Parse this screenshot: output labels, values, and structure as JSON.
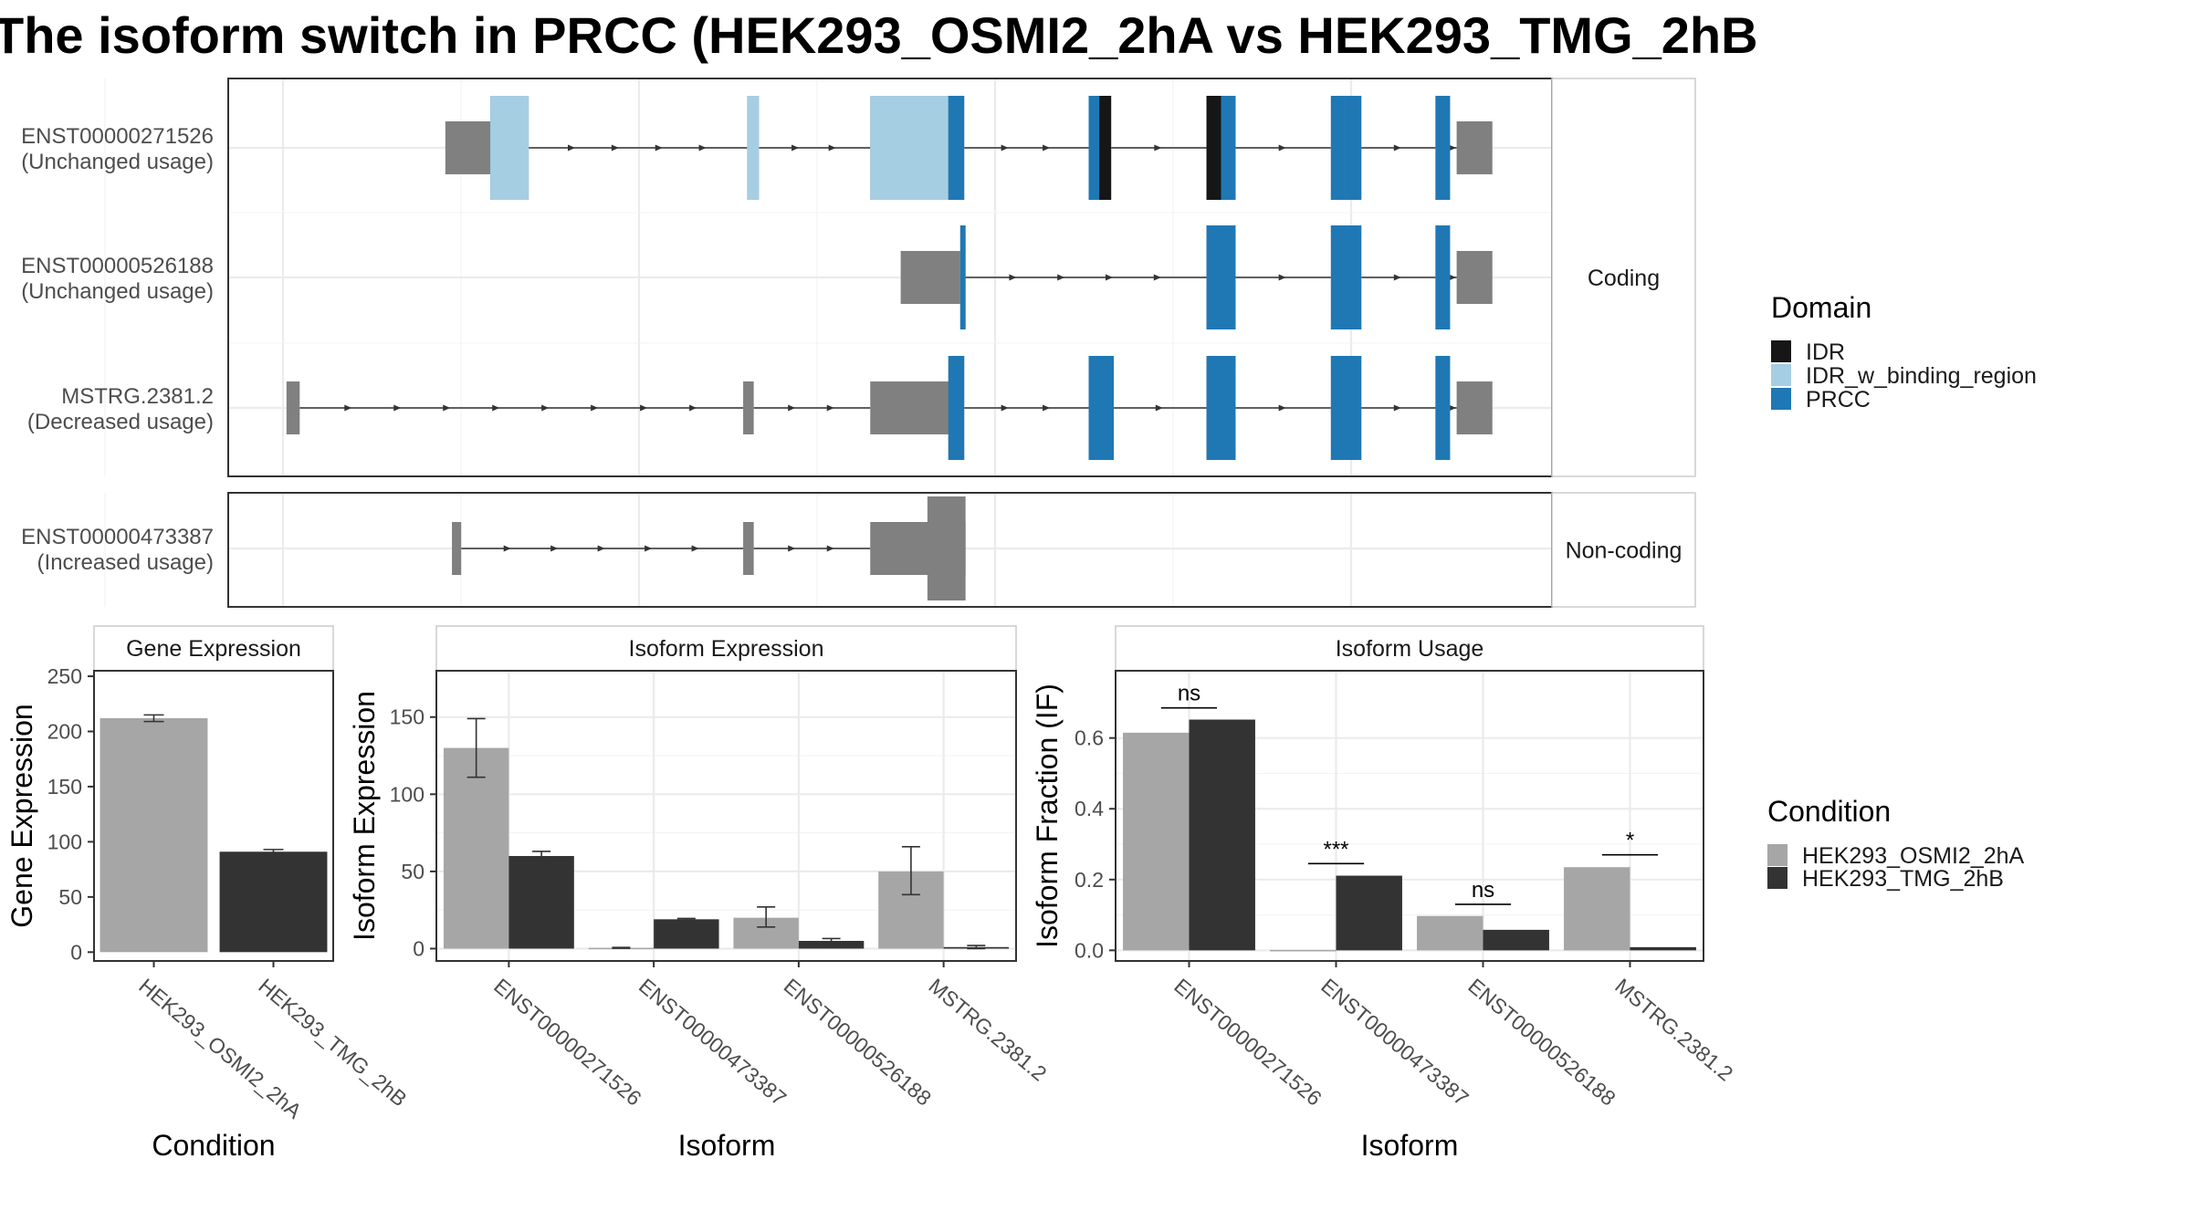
{
  "title": "The isoform switch in PRCC (HEK293_OSMI2_2hA vs HEK293_TMG_2hB",
  "colors": {
    "utr": "#808080",
    "idr": "#161616",
    "idr_w_binding_region": "#a6cee3",
    "prcc": "#1f78b4",
    "cond_a": "#a6a6a6",
    "cond_b": "#333333",
    "panel_border": "#333333",
    "grid": "#ebebeb",
    "strip_border": "#cccccc",
    "text": "#4d4d4d"
  },
  "structure": {
    "genomic_range": [
      0,
      1000
    ],
    "facets": [
      {
        "label": "Coding",
        "tracks": [
          0,
          1,
          2
        ]
      },
      {
        "label": "Non-coding",
        "tracks": [
          3
        ]
      }
    ],
    "tracks": [
      {
        "id": "ENST00000271526",
        "usage": "(Unchanged usage)",
        "coding": true,
        "utr": [
          [
            164,
            198
          ],
          [
            928,
            955
          ]
        ],
        "exons": [
          [
            198,
            227
          ],
          [
            392,
            401
          ],
          [
            485,
            556
          ],
          [
            650,
            667
          ],
          [
            739,
            761
          ],
          [
            833,
            856
          ],
          [
            912,
            923
          ]
        ],
        "domains": [
          {
            "domain": "IDR_w_binding_region",
            "start": 198,
            "end": 227
          },
          {
            "domain": "IDR_w_binding_region",
            "start": 392,
            "end": 401
          },
          {
            "domain": "IDR_w_binding_region",
            "start": 485,
            "end": 544
          },
          {
            "domain": "PRCC",
            "start": 544,
            "end": 556
          },
          {
            "domain": "PRCC",
            "start": 650,
            "end": 658
          },
          {
            "domain": "IDR",
            "start": 658,
            "end": 667
          },
          {
            "domain": "IDR",
            "start": 739,
            "end": 750
          },
          {
            "domain": "PRCC",
            "start": 750,
            "end": 761
          },
          {
            "domain": "PRCC",
            "start": 833,
            "end": 844
          },
          {
            "domain": "PRCC",
            "start": 844,
            "end": 856
          },
          {
            "domain": "PRCC",
            "start": 912,
            "end": 923
          }
        ]
      },
      {
        "id": "ENST00000526188",
        "usage": "(Unchanged usage)",
        "coding": true,
        "utr": [
          [
            508,
            553
          ],
          [
            928,
            955
          ]
        ],
        "exons": [
          [
            553,
            557
          ],
          [
            739,
            761
          ],
          [
            833,
            856
          ],
          [
            912,
            923
          ]
        ],
        "domains": [
          {
            "domain": "PRCC",
            "start": 553,
            "end": 557
          },
          {
            "domain": "PRCC",
            "start": 739,
            "end": 761
          },
          {
            "domain": "PRCC",
            "start": 833,
            "end": 856
          },
          {
            "domain": "PRCC",
            "start": 912,
            "end": 923
          }
        ]
      },
      {
        "id": "MSTRG.2381.2",
        "usage": "(Decreased usage)",
        "coding": true,
        "utr": [
          [
            44,
            54
          ],
          [
            389,
            397
          ],
          [
            485,
            554
          ],
          [
            928,
            955
          ]
        ],
        "exons": [
          [
            544,
            556
          ],
          [
            650,
            669
          ],
          [
            739,
            761
          ],
          [
            833,
            856
          ],
          [
            912,
            923
          ]
        ],
        "domains": [
          {
            "domain": "PRCC",
            "start": 544,
            "end": 556
          },
          {
            "domain": "PRCC",
            "start": 650,
            "end": 669
          },
          {
            "domain": "PRCC",
            "start": 739,
            "end": 761
          },
          {
            "domain": "PRCC",
            "start": 833,
            "end": 856
          },
          {
            "domain": "PRCC",
            "start": 912,
            "end": 923
          }
        ]
      },
      {
        "id": "ENST00000473387",
        "usage": "(Increased usage)",
        "coding": false,
        "noncoding_exons": [
          [
            169,
            176
          ],
          [
            389,
            397
          ],
          [
            485,
            557
          ]
        ]
      }
    ]
  },
  "legend_domain": {
    "title": "Domain",
    "entries": [
      {
        "label": "IDR",
        "color": "#161616"
      },
      {
        "label": "IDR_w_binding_region",
        "color": "#a6cee3"
      },
      {
        "label": "PRCC",
        "color": "#1f78b4"
      }
    ]
  },
  "legend_condition": {
    "title": "Condition",
    "entries": [
      {
        "label": "HEK293_OSMI2_2hA",
        "color": "#a6a6a6"
      },
      {
        "label": "HEK293_TMG_2hB",
        "color": "#333333"
      }
    ]
  },
  "chart_data": [
    {
      "type": "bar",
      "title": "Gene Expression",
      "xlabel": "Condition",
      "ylabel": "Gene Expression",
      "categories": [
        "HEK293_OSMI2_2hA",
        "HEK293_TMG_2hB"
      ],
      "values": [
        212,
        91
      ],
      "errors": [
        [
          209,
          215
        ],
        [
          89,
          93
        ]
      ],
      "ylim": [
        -8,
        255
      ],
      "yticks": [
        0,
        50,
        100,
        150,
        200,
        250
      ]
    },
    {
      "type": "bar",
      "title": "Isoform Expression",
      "xlabel": "Isoform",
      "ylabel": "Isoform Expression",
      "categories": [
        "ENST00000271526",
        "ENST00000473387",
        "ENST00000526188",
        "MSTRG.2381.2"
      ],
      "series": [
        {
          "name": "HEK293_OSMI2_2hA",
          "values": [
            130,
            0.5,
            20,
            50
          ],
          "errors": [
            [
              111,
              149
            ],
            [
              0.2,
              0.8
            ],
            [
              14,
              27
            ],
            [
              35,
              66
            ]
          ]
        },
        {
          "name": "HEK293_TMG_2hB",
          "values": [
            60,
            19,
            5,
            1
          ],
          "errors": [
            [
              57,
              63
            ],
            [
              18.5,
              19.5
            ],
            [
              3.5,
              6.5
            ],
            [
              0,
              2
            ]
          ]
        }
      ],
      "ylim": [
        -8,
        180
      ],
      "yticks": [
        0,
        50,
        100,
        150
      ],
      "grid": true
    },
    {
      "type": "bar",
      "title": "Isoform Usage",
      "xlabel": "Isoform",
      "ylabel": "Isoform Fraction (IF)",
      "categories": [
        "ENST00000271526",
        "ENST00000473387",
        "ENST00000526188",
        "MSTRG.2381.2"
      ],
      "series": [
        {
          "name": "HEK293_OSMI2_2hA",
          "values": [
            0.615,
            0.001,
            0.097,
            0.235
          ]
        },
        {
          "name": "HEK293_TMG_2hB",
          "values": [
            0.652,
            0.211,
            0.058,
            0.009
          ]
        }
      ],
      "significance": [
        {
          "category": "ENST00000271526",
          "label": "ns",
          "y": 0.685
        },
        {
          "category": "ENST00000473387",
          "label": "***",
          "y": 0.245
        },
        {
          "category": "ENST00000526188",
          "label": "ns",
          "y": 0.13
        },
        {
          "category": "MSTRG.2381.2",
          "label": "*",
          "y": 0.27
        }
      ],
      "ylim": [
        -0.03,
        0.79
      ],
      "yticks": [
        0.0,
        0.2,
        0.4,
        0.6
      ],
      "tick_labels": [
        "0.0",
        "0.2",
        "0.4",
        "0.6"
      ],
      "grid": true
    }
  ]
}
